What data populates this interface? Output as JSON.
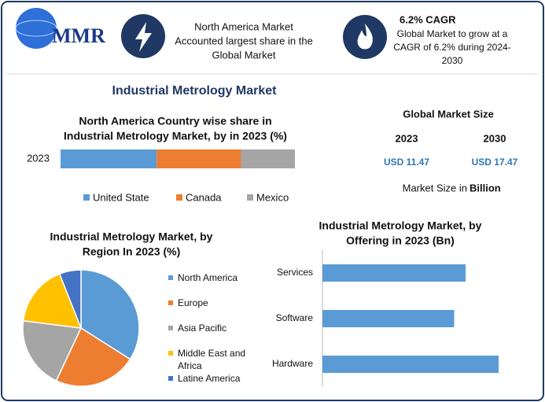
{
  "header": {
    "logo": "MMR",
    "box1": [
      "North America Market",
      "Accounted largest share in the",
      "Global Market"
    ],
    "box2_title": "6.2% CAGR",
    "box2_text": [
      "Global Market to grow at a",
      "CAGR of 6.2% during 2024-",
      "2030"
    ]
  },
  "title": "Industrial Metrology Market",
  "market_size": {
    "title": "Global Market Size",
    "years": [
      "2023",
      "2030"
    ],
    "values": [
      "USD 11.47",
      "USD 17.47"
    ],
    "note": "Market Size in",
    "note_bold": "Billion"
  },
  "chart_data": [
    {
      "type": "stacked-bar",
      "title": [
        "North America Country wise share in",
        "Industrial Metrology Market, by in 2023 (%)"
      ],
      "categories": [
        "2023"
      ],
      "xlim": [
        0,
        100
      ],
      "series": [
        {
          "name": "United State",
          "color": "#5b9bd5",
          "values": [
            41
          ]
        },
        {
          "name": "Canada",
          "color": "#ed7d31",
          "values": [
            36
          ]
        },
        {
          "name": "Mexico",
          "color": "#a5a5a5",
          "values": [
            23
          ]
        }
      ]
    },
    {
      "type": "pie",
      "title": [
        "Industrial Metrology Market, by",
        "Region In 2023 (%)"
      ],
      "categories": [
        "North America",
        "Europe",
        "Asia Pacific",
        "Middle East and Africa",
        "Latine America"
      ],
      "values": [
        34,
        23,
        20,
        17,
        6
      ],
      "colors": [
        "#5b9bd5",
        "#ed7d31",
        "#a5a5a5",
        "#ffc000",
        "#4472c4"
      ]
    },
    {
      "type": "hbar",
      "title": [
        "Industrial Metrology Market, by",
        "Offering in 2023 (Bn)"
      ],
      "categories": [
        "Services",
        "Software",
        "Hardware"
      ],
      "values": [
        3.64,
        3.35,
        4.48
      ],
      "color": "#5b9bd5",
      "xlim": [
        0,
        5
      ]
    }
  ]
}
